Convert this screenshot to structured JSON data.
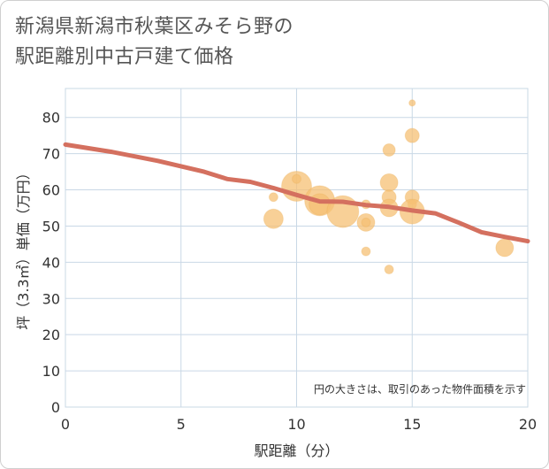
{
  "title_lines": [
    "新潟県新潟市秋葉区みそら野の",
    "駅距離別中古戸建て価格"
  ],
  "colors": {
    "bubble": "#f5c074",
    "bubble_stroke": "#e9a94a",
    "trend": "#d4705f",
    "grid": "#c9d8e6",
    "background": "#ffffff"
  },
  "chart_data": {
    "type": "scatter",
    "title": "新潟県新潟市秋葉区みそら野の駅距離別中古戸建て価格",
    "xlabel": "駅距離（分）",
    "ylabel": "坪（3.3㎡）単価（万円）",
    "note": "円の大きさは、取引のあった物件面積を示す",
    "xlim": [
      0,
      20
    ],
    "ylim": [
      0,
      88
    ],
    "xticks": [
      0,
      5,
      10,
      15,
      20
    ],
    "yticks": [
      0,
      10,
      20,
      30,
      40,
      50,
      60,
      70,
      80
    ],
    "grid": true,
    "points": [
      {
        "x": 9,
        "y": 58,
        "size": 1.5
      },
      {
        "x": 9,
        "y": 52,
        "size": 4.5
      },
      {
        "x": 10,
        "y": 61,
        "size": 7.5
      },
      {
        "x": 10,
        "y": 63,
        "size": 1.5
      },
      {
        "x": 11,
        "y": 57,
        "size": 7.5
      },
      {
        "x": 11,
        "y": 56,
        "size": 5.0
      },
      {
        "x": 12,
        "y": 54,
        "size": 8.0
      },
      {
        "x": 13,
        "y": 56,
        "size": 1.5
      },
      {
        "x": 13,
        "y": 51,
        "size": 4.0
      },
      {
        "x": 13,
        "y": 51,
        "size": 1.5
      },
      {
        "x": 13,
        "y": 43,
        "size": 1.5
      },
      {
        "x": 14,
        "y": 71,
        "size": 2.5
      },
      {
        "x": 14,
        "y": 62,
        "size": 4.0
      },
      {
        "x": 14,
        "y": 58,
        "size": 3.0
      },
      {
        "x": 14,
        "y": 55,
        "size": 4.0
      },
      {
        "x": 14,
        "y": 38,
        "size": 1.5
      },
      {
        "x": 15,
        "y": 84,
        "size": 0.8
      },
      {
        "x": 15,
        "y": 75,
        "size": 3.0
      },
      {
        "x": 15,
        "y": 58,
        "size": 3.0
      },
      {
        "x": 15,
        "y": 56,
        "size": 1.5
      },
      {
        "x": 15,
        "y": 54,
        "size": 6.0
      },
      {
        "x": 19,
        "y": 44,
        "size": 4.0
      }
    ],
    "trend_line": {
      "x": [
        0,
        2,
        4,
        6,
        7,
        8,
        9,
        10,
        11,
        12,
        13,
        14,
        15,
        16,
        17,
        18,
        19,
        20
      ],
      "y": [
        72.5,
        70.5,
        68,
        65,
        63,
        62.2,
        60.5,
        58.6,
        56.8,
        56.7,
        55.8,
        55.3,
        54.3,
        53.5,
        51,
        48.3,
        47,
        45.8
      ]
    }
  }
}
